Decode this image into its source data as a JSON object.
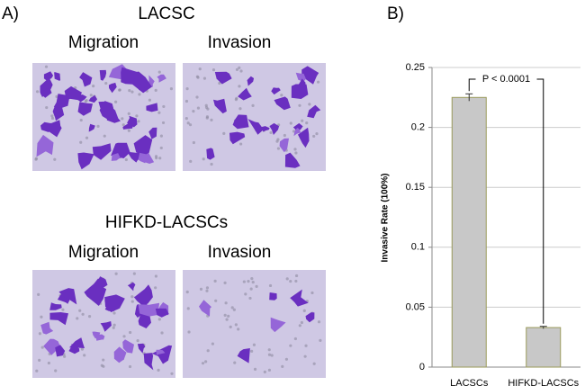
{
  "panel_a": {
    "label": "A)",
    "groups": [
      {
        "title": "LACSC",
        "left": "Migration",
        "right": "Invasion"
      },
      {
        "title": "HIFKD-LACSCs",
        "left": "Migration",
        "right": "Invasion"
      }
    ]
  },
  "chart_data": {
    "type": "bar",
    "panel_label": "B)",
    "y_label": "Invasive Rate (100%)",
    "annotation": "P < 0.0001",
    "categories": [
      "LACSCs",
      "HIFKD-LACSCs"
    ],
    "values": [
      0.225,
      0.033
    ],
    "errors": [
      0.003,
      0.001
    ],
    "color": "#c8c8c8",
    "edge_color": "#9a9a5a",
    "ylim": [
      0,
      0.25
    ],
    "yticks": [
      0,
      0.05,
      0.1,
      0.15,
      0.2,
      0.25
    ],
    "grid": true
  }
}
